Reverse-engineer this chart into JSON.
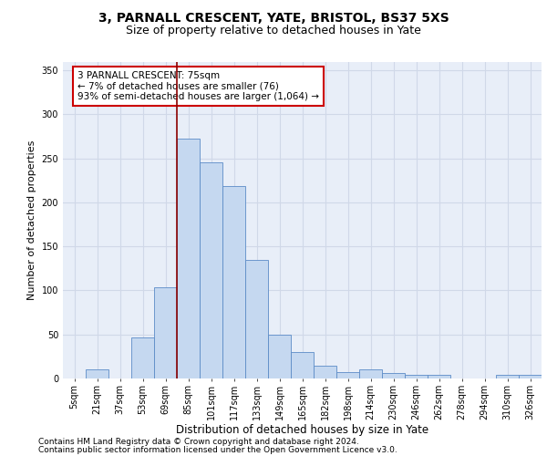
{
  "title1": "3, PARNALL CRESCENT, YATE, BRISTOL, BS37 5XS",
  "title2": "Size of property relative to detached houses in Yate",
  "xlabel": "Distribution of detached houses by size in Yate",
  "ylabel": "Number of detached properties",
  "bin_labels": [
    "5sqm",
    "21sqm",
    "37sqm",
    "53sqm",
    "69sqm",
    "85sqm",
    "101sqm",
    "117sqm",
    "133sqm",
    "149sqm",
    "165sqm",
    "182sqm",
    "198sqm",
    "214sqm",
    "230sqm",
    "246sqm",
    "262sqm",
    "278sqm",
    "294sqm",
    "310sqm",
    "326sqm"
  ],
  "bar_values": [
    0,
    10,
    0,
    47,
    104,
    272,
    246,
    219,
    135,
    50,
    30,
    15,
    7,
    10,
    6,
    4,
    4,
    0,
    0,
    4,
    4
  ],
  "bar_color": "#c5d8f0",
  "bar_edge_color": "#5b8bc7",
  "ylim": [
    0,
    360
  ],
  "yticks": [
    0,
    50,
    100,
    150,
    200,
    250,
    300,
    350
  ],
  "vline_color": "#8b0000",
  "annotation_text": "3 PARNALL CRESCENT: 75sqm\n← 7% of detached houses are smaller (76)\n93% of semi-detached houses are larger (1,064) →",
  "annotation_box_color": "#ffffff",
  "annotation_box_edge_color": "#cc0000",
  "footer1": "Contains HM Land Registry data © Crown copyright and database right 2024.",
  "footer2": "Contains public sector information licensed under the Open Government Licence v3.0.",
  "background_color": "#e8eef8",
  "grid_color": "#d0d8e8",
  "title1_fontsize": 10,
  "title2_fontsize": 9,
  "xlabel_fontsize": 8.5,
  "ylabel_fontsize": 8,
  "tick_fontsize": 7,
  "footer_fontsize": 6.5,
  "annotation_fontsize": 7.5
}
